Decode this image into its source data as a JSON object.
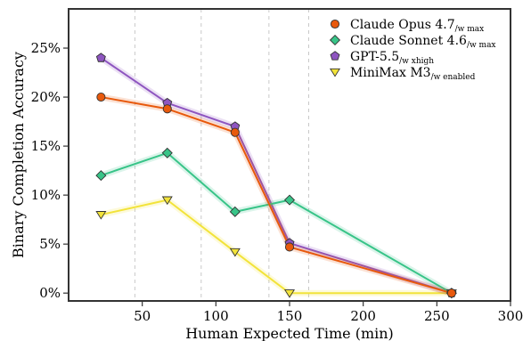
{
  "chart_data": {
    "type": "line",
    "xlabel": "Human Expected Time (min)",
    "ylabel": "Binary Completion Accuracy",
    "xlim": [
      0,
      300
    ],
    "ylim": [
      -0.8,
      29
    ],
    "x_ticks": [
      50,
      100,
      150,
      200,
      250,
      300
    ],
    "y_ticks": [
      0,
      5,
      10,
      15,
      20,
      25
    ],
    "y_tick_format": "percent",
    "grid": "vertical dashed lines at x = 45, 90, 136, 163",
    "vlines": [
      45,
      90,
      136,
      163
    ],
    "legend_position": "top-right",
    "series": [
      {
        "name": "Claude Opus 4.7",
        "name_suffix": "/w max",
        "color": "#e8590c",
        "marker": "circle",
        "x": [
          22,
          67,
          113,
          150,
          260
        ],
        "values": [
          20.0,
          18.8,
          16.4,
          4.7,
          0.0
        ]
      },
      {
        "name": "Claude Sonnet 4.6",
        "name_suffix": "/w max",
        "color": "#38c488",
        "marker": "diamond",
        "x": [
          22,
          67,
          113,
          150,
          260
        ],
        "values": [
          12.0,
          14.3,
          8.3,
          9.5,
          0.0
        ]
      },
      {
        "name": "GPT-5.5",
        "name_suffix": "/w xhigh",
        "color": "#8e55c0",
        "marker": "pentagon",
        "x": [
          22,
          67,
          113,
          150,
          260
        ],
        "values": [
          24.0,
          19.4,
          17.0,
          5.1,
          0.0
        ]
      },
      {
        "name": "MiniMax M3",
        "name_suffix": "/w enabled",
        "color": "#f2e33a",
        "marker": "triangle-down",
        "x": [
          22,
          67,
          113,
          150,
          260
        ],
        "values": [
          8.0,
          9.5,
          4.2,
          0.0,
          0.0
        ]
      }
    ]
  }
}
